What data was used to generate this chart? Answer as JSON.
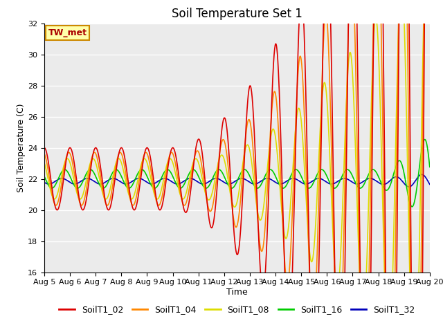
{
  "title": "Soil Temperature Set 1",
  "xlabel": "Time",
  "ylabel": "Soil Temperature (C)",
  "ylim": [
    16,
    32
  ],
  "xlim": [
    0,
    15
  ],
  "yticks": [
    16,
    18,
    20,
    22,
    24,
    26,
    28,
    30,
    32
  ],
  "xtick_labels": [
    "Aug 5",
    "Aug 6",
    "Aug 7",
    "Aug 8",
    "Aug 9",
    "Aug 10",
    "Aug 11",
    "Aug 12",
    "Aug 13",
    "Aug 14",
    "Aug 15",
    "Aug 16",
    "Aug 17",
    "Aug 18",
    "Aug 19",
    "Aug 20"
  ],
  "annotation_text": "TW_met",
  "annotation_bg": "#FFFFAA",
  "annotation_edge": "#CC8800",
  "annotation_color": "#AA0000",
  "bg_color": "#EBEBEB",
  "series": [
    {
      "label": "SoilT1_02",
      "color": "#DD0000"
    },
    {
      "label": "SoilT1_04",
      "color": "#FF8800"
    },
    {
      "label": "SoilT1_08",
      "color": "#DDDD00"
    },
    {
      "label": "SoilT1_16",
      "color": "#00CC00"
    },
    {
      "label": "SoilT1_32",
      "color": "#0000BB"
    }
  ],
  "title_fontsize": 12,
  "axis_label_fontsize": 9,
  "tick_fontsize": 8
}
